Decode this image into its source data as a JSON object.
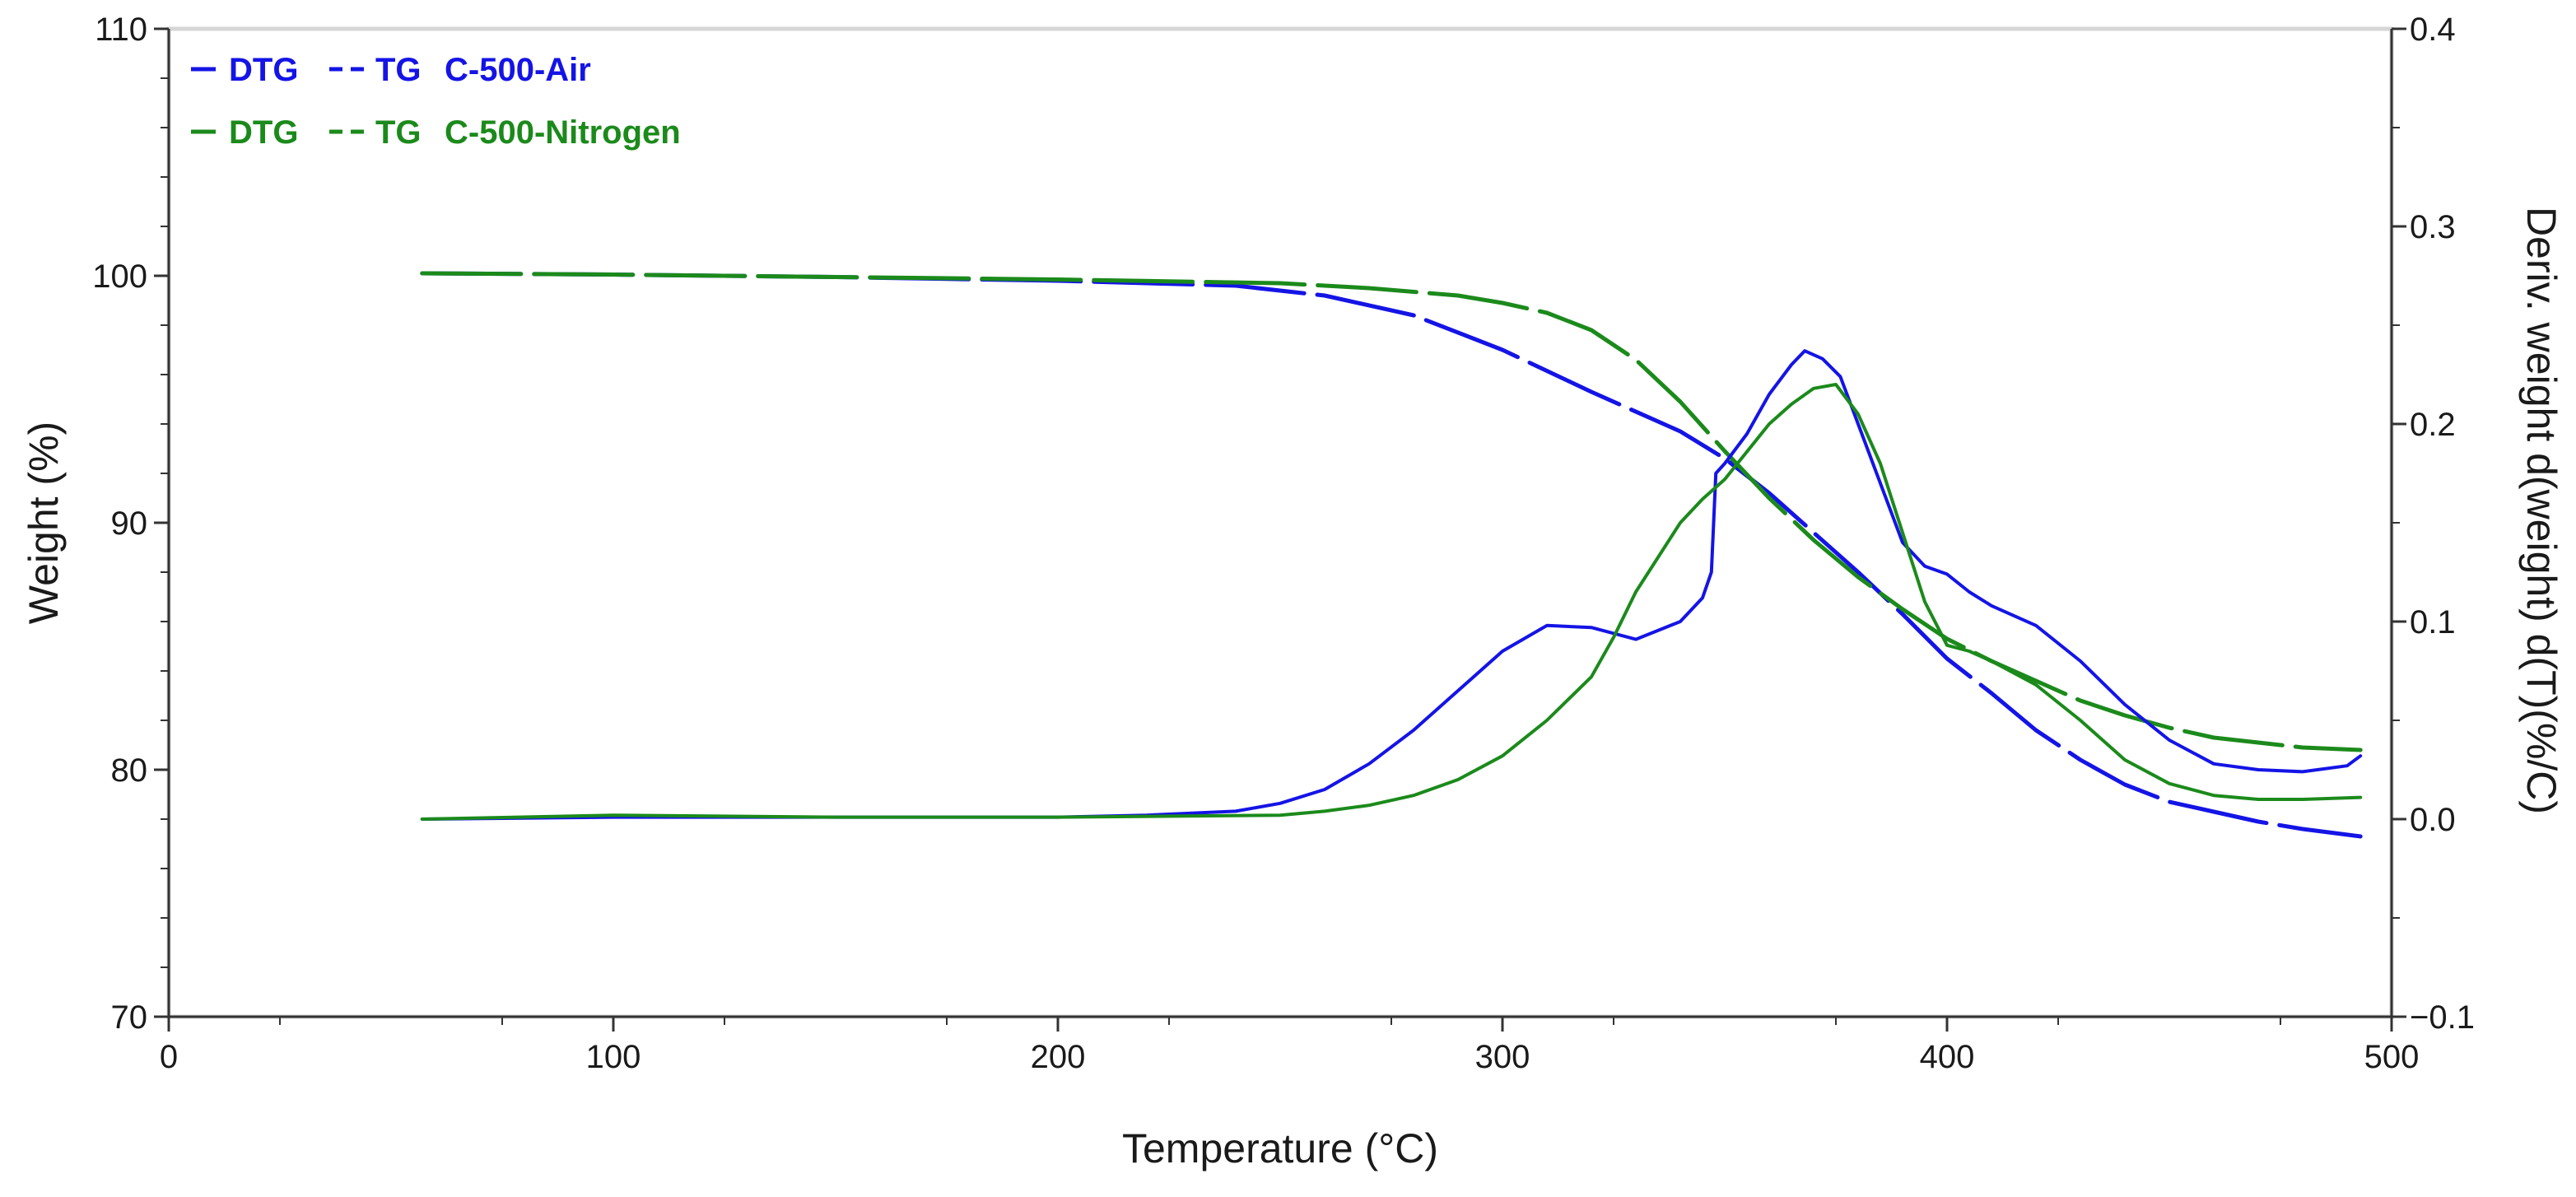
{
  "chart_data": {
    "type": "line",
    "xlabel": "Temperature (°C)",
    "ylabel_left": "Weight (%)",
    "ylabel_right": "Deriv. weight d(weight) d(T)(%/C)",
    "xlim": [
      0,
      500
    ],
    "ylim_left": [
      70,
      110
    ],
    "ylim_right": [
      -0.1,
      0.4
    ],
    "x_ticks": [
      "0",
      "100",
      "200",
      "300",
      "400",
      "500"
    ],
    "y_left_ticks": [
      "70",
      "80",
      "90",
      "100",
      "110"
    ],
    "y_right_ticks": [
      "−0.1",
      "0.0",
      "0.1",
      "0.2",
      "0.3",
      "0.4"
    ],
    "legend": [
      {
        "key": "DTG",
        "dash_key": "TG",
        "label": "C-500-Air",
        "color": "#1414e6"
      },
      {
        "key": "DTG",
        "dash_key": "TG",
        "label": "C-500-Nitrogen",
        "color": "#1b8a1b"
      }
    ],
    "series": [
      {
        "name": "C-500-Air TG",
        "axis": "left",
        "style": "dashed",
        "color": "#1414e6",
        "x": [
          57,
          100,
          150,
          200,
          240,
          260,
          280,
          300,
          320,
          340,
          350,
          360,
          370,
          380,
          390,
          400,
          410,
          420,
          430,
          440,
          450,
          460,
          470,
          480,
          493
        ],
        "y": [
          100.1,
          100.05,
          99.95,
          99.8,
          99.6,
          99.2,
          98.4,
          97.0,
          95.3,
          93.7,
          92.6,
          91.2,
          89.6,
          88.0,
          86.3,
          84.5,
          83.1,
          81.6,
          80.4,
          79.4,
          78.7,
          78.3,
          77.9,
          77.6,
          77.3
        ]
      },
      {
        "name": "C-500-Nitrogen TG",
        "axis": "left",
        "style": "dashed",
        "color": "#1b8a1b",
        "x": [
          57,
          100,
          150,
          200,
          250,
          270,
          290,
          300,
          310,
          320,
          330,
          340,
          350,
          360,
          370,
          380,
          390,
          400,
          410,
          420,
          430,
          440,
          450,
          460,
          470,
          480,
          493
        ],
        "y": [
          100.1,
          100.05,
          99.95,
          99.85,
          99.7,
          99.5,
          99.2,
          98.9,
          98.5,
          97.8,
          96.6,
          94.9,
          92.9,
          91.0,
          89.3,
          87.8,
          86.5,
          85.3,
          84.4,
          83.6,
          82.8,
          82.2,
          81.7,
          81.3,
          81.1,
          80.9,
          80.8
        ]
      },
      {
        "name": "C-500-Air DTG",
        "axis": "right",
        "style": "solid",
        "color": "#1414e6",
        "x": [
          57,
          100,
          150,
          200,
          220,
          240,
          250,
          260,
          270,
          280,
          290,
          300,
          310,
          320,
          330,
          340,
          345,
          347,
          348,
          350,
          355,
          360,
          365,
          368,
          372,
          376,
          380,
          385,
          390,
          395,
          400,
          405,
          410,
          420,
          430,
          440,
          450,
          460,
          470,
          480,
          490,
          493
        ],
        "y": [
          0.0,
          0.001,
          0.001,
          0.001,
          0.002,
          0.004,
          0.008,
          0.015,
          0.028,
          0.045,
          0.065,
          0.085,
          0.098,
          0.097,
          0.091,
          0.1,
          0.112,
          0.125,
          0.175,
          0.18,
          0.195,
          0.215,
          0.23,
          0.237,
          0.233,
          0.224,
          0.2,
          0.17,
          0.14,
          0.128,
          0.124,
          0.115,
          0.108,
          0.098,
          0.08,
          0.058,
          0.04,
          0.028,
          0.025,
          0.024,
          0.027,
          0.032
        ]
      },
      {
        "name": "C-500-Nitrogen DTG",
        "axis": "right",
        "style": "solid",
        "color": "#1b8a1b",
        "x": [
          57,
          100,
          150,
          200,
          250,
          260,
          270,
          280,
          290,
          300,
          310,
          320,
          325,
          330,
          340,
          345,
          350,
          360,
          365,
          370,
          375,
          380,
          385,
          390,
          395,
          400,
          405,
          410,
          420,
          430,
          440,
          450,
          460,
          470,
          480,
          493
        ],
        "y": [
          0.0,
          0.002,
          0.001,
          0.001,
          0.002,
          0.004,
          0.007,
          0.012,
          0.02,
          0.032,
          0.05,
          0.072,
          0.092,
          0.115,
          0.15,
          0.162,
          0.172,
          0.2,
          0.21,
          0.218,
          0.22,
          0.205,
          0.18,
          0.145,
          0.11,
          0.088,
          0.085,
          0.08,
          0.068,
          0.05,
          0.03,
          0.018,
          0.012,
          0.01,
          0.01,
          0.011
        ]
      }
    ]
  }
}
